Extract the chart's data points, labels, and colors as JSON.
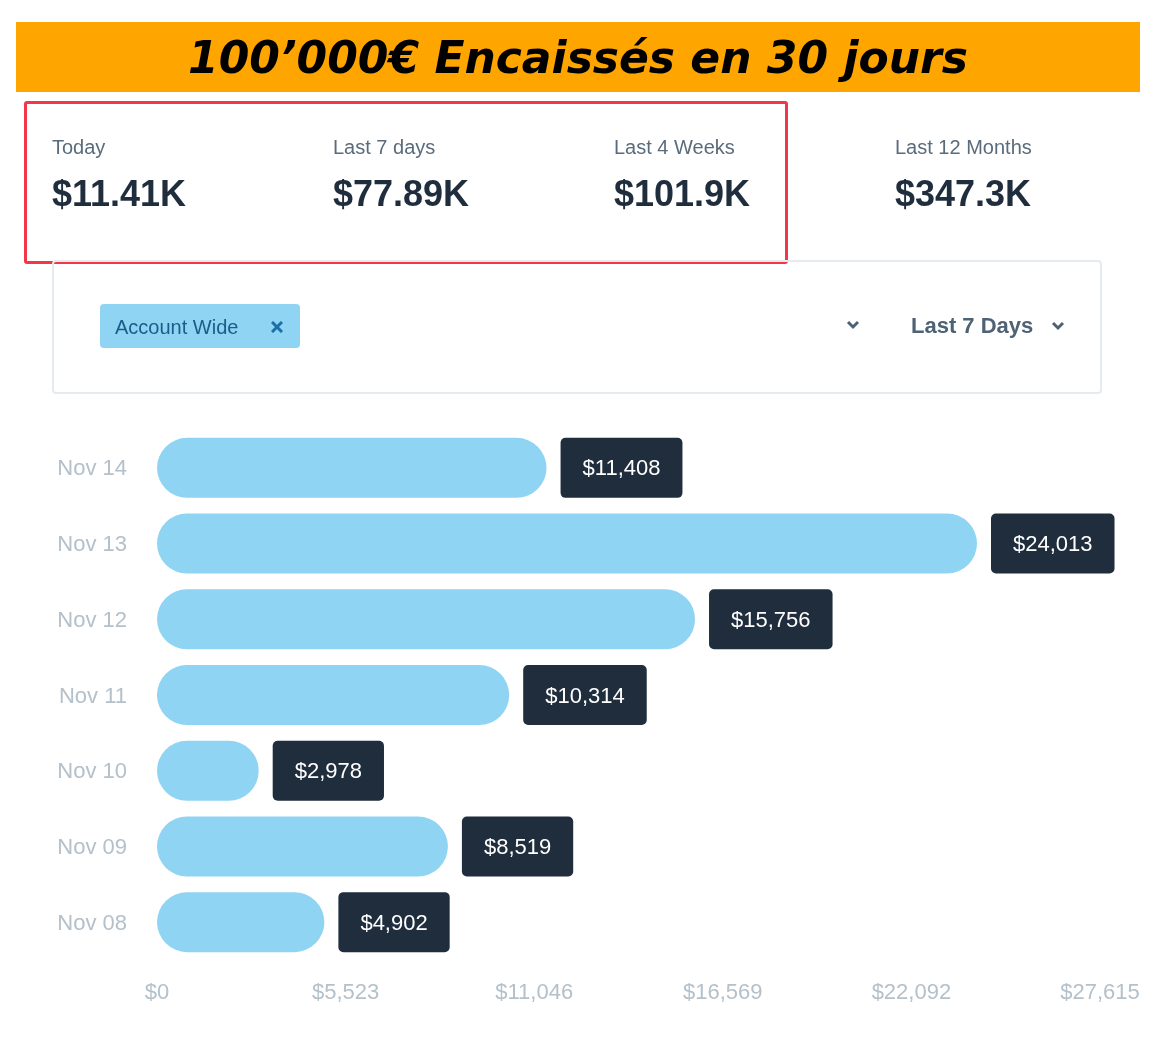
{
  "chart_data": {
    "type": "bar",
    "orientation": "horizontal",
    "title": "100’000€ Encaissés en 30 jours",
    "categories": [
      "Nov 14",
      "Nov 13",
      "Nov 12",
      "Nov 11",
      "Nov 10",
      "Nov 09",
      "Nov 08"
    ],
    "values": [
      11408,
      24013,
      15756,
      10314,
      2978,
      8519,
      4902
    ],
    "value_labels": [
      "$11,408",
      "$24,013",
      "$15,756",
      "$10,314",
      "$2,978",
      "$8,519",
      "$4,902"
    ],
    "color": "#8fd4f3",
    "xlim": [
      0,
      27615
    ],
    "xticks": [
      {
        "value": 0,
        "label": "$0"
      },
      {
        "value": 5523,
        "label": "$5,523"
      },
      {
        "value": 11046,
        "label": "$11,046"
      },
      {
        "value": 16569,
        "label": "$16,569"
      },
      {
        "value": 22092,
        "label": "$22,092"
      },
      {
        "value": 27615,
        "label": "$27,615"
      }
    ],
    "grid": false,
    "annotations": [
      "Today",
      "$11.41K",
      "Last 7 days",
      "$77.89K",
      "Last 4 Weeks",
      "$101.9K",
      "Last 12 Months",
      "$347.3K",
      "Account Wide",
      "Last 7 Days"
    ]
  }
}
